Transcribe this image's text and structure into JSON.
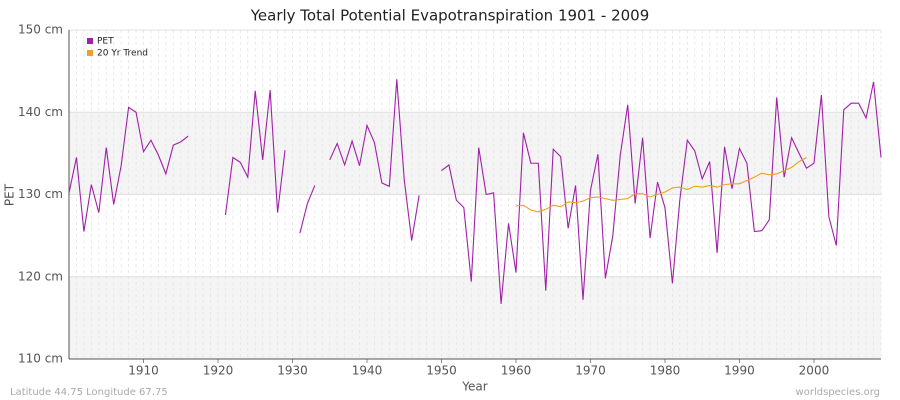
{
  "chart_data": {
    "type": "line",
    "title": "Yearly Total Potential Evapotranspiration 1901 - 2009",
    "x_label": "Year",
    "y_label": "PET",
    "footer_left": "Latitude 44.75 Longitude 67.75",
    "footer_right": "worldspecies.org",
    "legend": "top-left",
    "grid": true,
    "xlim": [
      1900,
      2009
    ],
    "xticks": [
      1910,
      1920,
      1930,
      1940,
      1950,
      1960,
      1970,
      1980,
      1990,
      2000
    ],
    "ylim": [
      110,
      150
    ],
    "yticks": [
      {
        "value": 110,
        "label": "110 cm"
      },
      {
        "value": 120,
        "label": "120 cm"
      },
      {
        "value": 130,
        "label": "130 cm"
      },
      {
        "value": 140,
        "label": "140 cm"
      },
      {
        "value": 150,
        "label": "150 cm"
      }
    ],
    "x": [
      1900,
      1901,
      1902,
      1903,
      1904,
      1905,
      1906,
      1907,
      1908,
      1909,
      1910,
      1911,
      1912,
      1913,
      1914,
      1915,
      1916,
      1917,
      1918,
      1919,
      1920,
      1921,
      1922,
      1923,
      1924,
      1925,
      1926,
      1927,
      1928,
      1929,
      1930,
      1931,
      1932,
      1933,
      1934,
      1935,
      1936,
      1937,
      1938,
      1939,
      1940,
      1941,
      1942,
      1943,
      1944,
      1945,
      1946,
      1947,
      1948,
      1949,
      1950,
      1951,
      1952,
      1953,
      1954,
      1955,
      1956,
      1957,
      1958,
      1959,
      1960,
      1961,
      1962,
      1963,
      1964,
      1965,
      1966,
      1967,
      1968,
      1969,
      1970,
      1971,
      1972,
      1973,
      1974,
      1975,
      1976,
      1977,
      1978,
      1979,
      1980,
      1981,
      1982,
      1983,
      1984,
      1985,
      1986,
      1987,
      1988,
      1989,
      1990,
      1991,
      1992,
      1993,
      1994,
      1995,
      1996,
      1997,
      1998,
      1999,
      2000,
      2001,
      2002,
      2003,
      2004,
      2005,
      2006,
      2007,
      2008,
      2009
    ],
    "series": [
      {
        "name": "PET",
        "color": "#a020a8",
        "values": [
          130.2,
          134.5,
          125.5,
          131.2,
          127.8,
          135.7,
          128.8,
          133.5,
          140.6,
          140.0,
          135.2,
          136.6,
          134.8,
          132.5,
          136.0,
          136.4,
          137.1,
          null,
          null,
          null,
          null,
          127.5,
          134.5,
          133.9,
          132.1,
          142.6,
          134.2,
          142.7,
          127.8,
          135.4,
          null,
          125.3,
          128.9,
          131.1,
          null,
          134.2,
          136.2,
          133.6,
          136.5,
          133.5,
          138.4,
          136.3,
          131.4,
          131.0,
          144.0,
          131.8,
          124.4,
          129.9,
          null,
          null,
          132.9,
          133.6,
          129.3,
          128.4,
          119.4,
          135.7,
          130.0,
          130.2,
          116.7,
          126.5,
          120.5,
          137.5,
          133.8,
          133.8,
          118.3,
          135.5,
          134.6,
          125.9,
          131.1,
          117.2,
          130.5,
          134.9,
          119.8,
          125.0,
          134.8,
          140.9,
          128.9,
          136.9,
          124.7,
          131.5,
          128.4,
          119.2,
          129.4,
          136.6,
          135.3,
          131.9,
          134.0,
          122.9,
          135.8,
          130.7,
          135.6,
          133.8,
          125.5,
          125.6,
          126.9,
          141.8,
          132.1,
          136.9,
          135.0,
          133.2,
          133.8,
          142.1,
          127.3,
          123.8,
          140.3,
          141.1,
          141.1,
          139.3,
          143.7,
          134.5
        ]
      },
      {
        "name": "20 Yr Trend",
        "color": "#f0a020",
        "values": [
          null,
          null,
          null,
          null,
          null,
          null,
          null,
          null,
          null,
          null,
          null,
          null,
          null,
          null,
          null,
          null,
          null,
          null,
          null,
          null,
          null,
          null,
          null,
          null,
          null,
          null,
          null,
          null,
          null,
          null,
          null,
          null,
          null,
          null,
          null,
          null,
          null,
          null,
          null,
          null,
          null,
          null,
          null,
          null,
          null,
          null,
          null,
          null,
          null,
          null,
          null,
          null,
          null,
          null,
          null,
          null,
          null,
          null,
          null,
          null,
          128.6,
          128.7,
          128.1,
          127.9,
          128.2,
          128.7,
          128.5,
          129.1,
          129.0,
          129.2,
          129.6,
          129.7,
          129.5,
          129.3,
          129.4,
          129.5,
          130.1,
          130.1,
          129.7,
          130.0,
          130.3,
          130.8,
          130.9,
          130.6,
          131.0,
          130.9,
          131.1,
          130.9,
          131.2,
          131.3,
          131.3,
          131.7,
          132.1,
          132.6,
          132.4,
          132.5,
          132.9,
          133.3,
          134.0,
          134.5,
          null,
          null,
          null,
          null,
          null,
          null,
          null,
          null,
          null,
          null
        ]
      }
    ]
  }
}
